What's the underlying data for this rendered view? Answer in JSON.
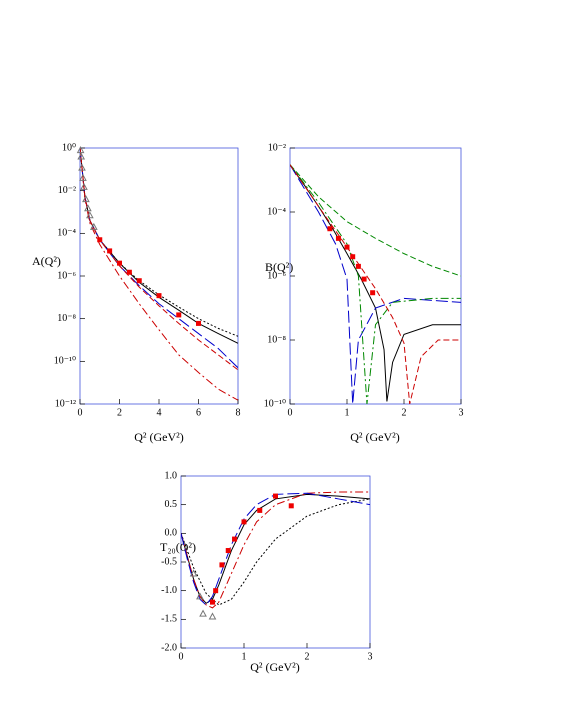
{
  "chart_data": [
    {
      "type": "line",
      "ylabel": "A(Q²)",
      "xlabel": "Q² (GeV²)",
      "log_y": true,
      "xlim": [
        0,
        8
      ],
      "xticks": [
        0,
        2,
        4,
        6,
        8
      ],
      "ylim": [
        1e-12,
        1
      ],
      "yticks": [
        {
          "value": 1,
          "label": "10⁰"
        },
        {
          "value": 0.01,
          "label": "10⁻²"
        },
        {
          "value": 0.0001,
          "label": "10⁻⁴"
        },
        {
          "value": 1e-06,
          "label": "10⁻⁶"
        },
        {
          "value": 1e-08,
          "label": "10⁻⁸"
        },
        {
          "value": 1e-10,
          "label": "10⁻¹⁰"
        },
        {
          "value": 1e-12,
          "label": "10⁻¹²"
        }
      ],
      "series": [
        {
          "color": "#000000",
          "style": "solid",
          "x": [
            0,
            0.25,
            0.5,
            1,
            2,
            3,
            4,
            5,
            6,
            7,
            8
          ],
          "values": [
            1,
            0.005,
            0.0004,
            5e-05,
            4e-06,
            5e-07,
            1e-07,
            2.5e-08,
            6e-09,
            2e-09,
            7e-10
          ]
        },
        {
          "color": "#000000",
          "style": "dotted",
          "x": [
            0,
            0.25,
            0.5,
            1,
            2,
            3,
            4,
            5,
            6,
            7,
            8
          ],
          "values": [
            1,
            0.005,
            0.0004,
            5e-05,
            4e-06,
            6e-07,
            1.3e-07,
            3.5e-08,
            1e-08,
            3.5e-09,
            1.5e-09
          ]
        },
        {
          "color": "#0000cc",
          "style": "longdash",
          "x": [
            0,
            0.25,
            0.5,
            1,
            2,
            3,
            4,
            5,
            6,
            7,
            8
          ],
          "values": [
            1,
            0.005,
            0.0004,
            5e-05,
            3e-06,
            3.5e-07,
            5e-08,
            1e-08,
            2e-09,
            4e-10,
            5e-11
          ]
        },
        {
          "color": "#cc0000",
          "style": "dashed",
          "x": [
            0,
            0.25,
            0.5,
            1,
            2,
            3,
            4,
            5,
            6,
            7,
            8
          ],
          "values": [
            1,
            0.005,
            0.0004,
            5e-05,
            3e-06,
            3e-07,
            4e-08,
            6e-09,
            1e-09,
            2e-10,
            4e-11
          ]
        },
        {
          "color": "#cc0000",
          "style": "dashdot",
          "x": [
            0,
            0.25,
            0.5,
            1,
            2,
            3,
            4,
            5,
            6,
            7,
            8
          ],
          "values": [
            1,
            0.004,
            0.0003,
            3e-05,
            1e-06,
            5e-08,
            3e-09,
            2e-10,
            3e-11,
            5e-12,
            1.5e-12
          ]
        },
        {
          "color": "#777777",
          "style": "triangle",
          "x": [
            0.03,
            0.06,
            0.1,
            0.15,
            0.2,
            0.3,
            0.4,
            0.5,
            0.7
          ],
          "values": [
            0.8,
            0.4,
            0.12,
            0.04,
            0.015,
            0.004,
            0.0015,
            0.0007,
            0.0002
          ]
        },
        {
          "color": "#ee0000",
          "style": "square",
          "x": [
            1,
            1.5,
            2,
            2.5,
            3,
            4,
            5,
            6
          ],
          "values": [
            5e-05,
            1.5e-05,
            4e-06,
            1.5e-06,
            6e-07,
            1.2e-07,
            1.5e-08,
            6e-09
          ]
        }
      ]
    },
    {
      "type": "line",
      "ylabel": "B(Q²)",
      "xlabel": "Q² (GeV²)",
      "log_y": true,
      "xlim": [
        0,
        3
      ],
      "xticks": [
        0,
        1,
        2,
        3
      ],
      "ylim": [
        1e-10,
        0.01
      ],
      "yticks": [
        {
          "value": 0.01,
          "label": "10⁻²"
        },
        {
          "value": 0.0001,
          "label": "10⁻⁴"
        },
        {
          "value": 1e-06,
          "label": "10⁻⁶"
        },
        {
          "value": 1e-08,
          "label": "10⁻⁸"
        },
        {
          "value": 1e-10,
          "label": "10⁻¹⁰"
        }
      ],
      "series": [
        {
          "color": "#000000",
          "style": "solid",
          "x": [
            0,
            0.25,
            0.5,
            0.75,
            1,
            1.25,
            1.5,
            1.65,
            1.7,
            1.8,
            2,
            2.5,
            3
          ],
          "values": [
            0.003,
            0.0007,
            0.00015,
            3e-05,
            5e-06,
            8e-07,
            1e-07,
            5e-09,
            1.2e-10,
            2e-09,
            1.5e-08,
            3e-08,
            3e-08
          ]
        },
        {
          "color": "#008800",
          "style": "dashed",
          "x": [
            0,
            0.5,
            1,
            1.5,
            2,
            2.5,
            3
          ],
          "values": [
            0.003,
            0.0003,
            5e-05,
            1.5e-05,
            5e-06,
            2e-06,
            1e-06
          ]
        },
        {
          "color": "#0000cc",
          "style": "longdash",
          "x": [
            0,
            0.5,
            0.8,
            1,
            1.1,
            1.2,
            1.5,
            2,
            3
          ],
          "values": [
            0.003,
            0.0001,
            1e-05,
            8e-07,
            1e-10,
            1e-08,
            1e-07,
            2e-07,
            1.5e-07
          ]
        },
        {
          "color": "#008800",
          "style": "dashdot",
          "x": [
            0,
            0.5,
            1,
            1.2,
            1.35,
            1.5,
            1.8,
            2.5,
            3
          ],
          "values": [
            0.003,
            0.0002,
            1e-05,
            1e-06,
            1e-10,
            3e-08,
            1.5e-07,
            2e-07,
            2e-07
          ]
        },
        {
          "color": "#cc0000",
          "style": "dashed",
          "x": [
            0,
            0.5,
            1,
            1.5,
            1.8,
            2,
            2.1,
            2.3,
            2.6,
            3
          ],
          "values": [
            0.003,
            0.00015,
            8e-06,
            4e-07,
            5e-08,
            8e-09,
            1e-10,
            3e-09,
            1e-08,
            1e-08
          ]
        },
        {
          "color": "#ee0000",
          "style": "square",
          "x": [
            0.7,
            0.85,
            1,
            1.1,
            1.2,
            1.3,
            1.45
          ],
          "values": [
            3e-05,
            1.5e-05,
            8e-06,
            4e-06,
            2e-06,
            8e-07,
            3e-07
          ]
        }
      ]
    },
    {
      "type": "line",
      "ylabel": "T₂₀(Q²)",
      "xlabel": "Q² (GeV²)",
      "log_y": false,
      "xlim": [
        0,
        3
      ],
      "xticks": [
        0,
        1,
        2,
        3
      ],
      "ylim": [
        -2,
        1
      ],
      "yticks": [
        {
          "value": 1,
          "label": "1.0"
        },
        0.5,
        {
          "value": 0,
          "label": "0.0"
        },
        -0.5,
        {
          "value": -1,
          "label": "-1.0"
        },
        -1.5,
        {
          "value": -2,
          "label": "-2.0"
        }
      ],
      "series": [
        {
          "color": "#000000",
          "style": "solid",
          "x": [
            0,
            0.1,
            0.2,
            0.3,
            0.4,
            0.5,
            0.6,
            0.8,
            1,
            1.2,
            1.5,
            2,
            2.5,
            3
          ],
          "values": [
            0,
            -0.4,
            -0.8,
            -1.1,
            -1.22,
            -1.15,
            -0.9,
            -0.3,
            0.15,
            0.4,
            0.6,
            0.68,
            0.65,
            0.6
          ]
        },
        {
          "color": "#000000",
          "style": "dotted",
          "x": [
            0,
            0.2,
            0.4,
            0.6,
            0.8,
            1,
            1.2,
            1.5,
            2,
            2.5,
            3
          ],
          "values": [
            0,
            -0.6,
            -1.05,
            -1.25,
            -1.15,
            -0.85,
            -0.5,
            -0.1,
            0.3,
            0.5,
            0.6
          ]
        },
        {
          "color": "#cc0000",
          "style": "dashdot",
          "x": [
            0,
            0.1,
            0.2,
            0.3,
            0.4,
            0.5,
            0.6,
            0.8,
            1,
            1.2,
            1.5,
            2,
            2.5,
            3
          ],
          "values": [
            0,
            -0.4,
            -0.8,
            -1.1,
            -1.25,
            -1.3,
            -1.2,
            -0.7,
            -0.2,
            0.2,
            0.5,
            0.7,
            0.72,
            0.72
          ]
        },
        {
          "color": "#0000cc",
          "style": "longdash",
          "x": [
            0,
            0.1,
            0.2,
            0.3,
            0.4,
            0.5,
            0.6,
            0.8,
            1,
            1.2,
            1.5,
            2,
            2.5,
            3
          ],
          "values": [
            0,
            -0.45,
            -0.85,
            -1.15,
            -1.25,
            -1.1,
            -0.8,
            -0.2,
            0.25,
            0.5,
            0.68,
            0.7,
            0.6,
            0.5
          ]
        },
        {
          "color": "#777777",
          "style": "triangle",
          "x": [
            0.2,
            0.3,
            0.35,
            0.5
          ],
          "values": [
            -0.7,
            -1.1,
            -1.4,
            -1.45
          ]
        },
        {
          "color": "#ee0000",
          "style": "square",
          "x": [
            0.5,
            0.55,
            0.65,
            0.75,
            0.85,
            1,
            1.25,
            1.5,
            1.75
          ],
          "values": [
            -1.2,
            -1,
            -0.55,
            -0.3,
            -0.1,
            0.2,
            0.4,
            0.65,
            0.48
          ]
        }
      ]
    }
  ]
}
